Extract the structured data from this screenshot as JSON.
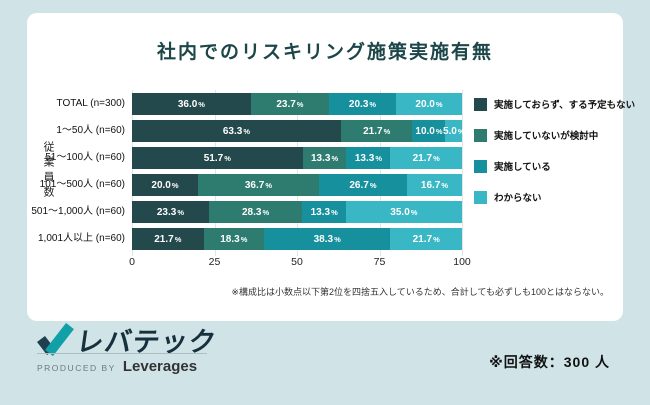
{
  "chart_data": {
    "type": "bar",
    "variant": "horizontal-stacked",
    "title": "社内でのリスキリング施策実施有無",
    "y_axis_title": "従業員数",
    "categories": [
      "TOTAL (n=300)",
      "1〜50人 (n=60)",
      "51〜100人 (n=60)",
      "101〜500人 (n=60)",
      "501〜1,000人 (n=60)",
      "1,001人以上 (n=60)"
    ],
    "series": [
      {
        "name": "実施しておらず、する予定もない",
        "color": "#24494c",
        "values": [
          36.0,
          63.3,
          51.7,
          20.0,
          23.3,
          21.7
        ]
      },
      {
        "name": "実施していないが検討中",
        "color": "#2e7b70",
        "values": [
          23.7,
          21.7,
          13.3,
          36.7,
          28.3,
          18.3
        ]
      },
      {
        "name": "実施している",
        "color": "#17909d",
        "values": [
          20.3,
          10.0,
          13.3,
          26.7,
          13.3,
          38.3
        ]
      },
      {
        "name": "わからない",
        "color": "#39b7c5",
        "values": [
          20.0,
          5.0,
          21.7,
          16.7,
          35.0,
          21.7
        ]
      }
    ],
    "x_ticks": [
      0,
      25,
      50,
      75,
      100
    ],
    "xlim": [
      0,
      100
    ],
    "value_suffix": "%",
    "legend_position": "right",
    "grid": true
  },
  "footnote": "※構成比は小数点以下第2位を四捨五入しているため、合計しても必ずしも100とはならない。",
  "footer": {
    "logo_text": "レバテック",
    "produced_by": "PRODUCED BY",
    "company": "Leverages",
    "respondents": "※回答数：300 人"
  },
  "icons": {
    "logo_mark": "check-icon"
  },
  "colors": {
    "background": "#d0e4e8",
    "card": "#ffffff",
    "title_text": "#1d4649",
    "logo_dark": "#1d3f4e",
    "logo_teal": "#12a0a8"
  }
}
